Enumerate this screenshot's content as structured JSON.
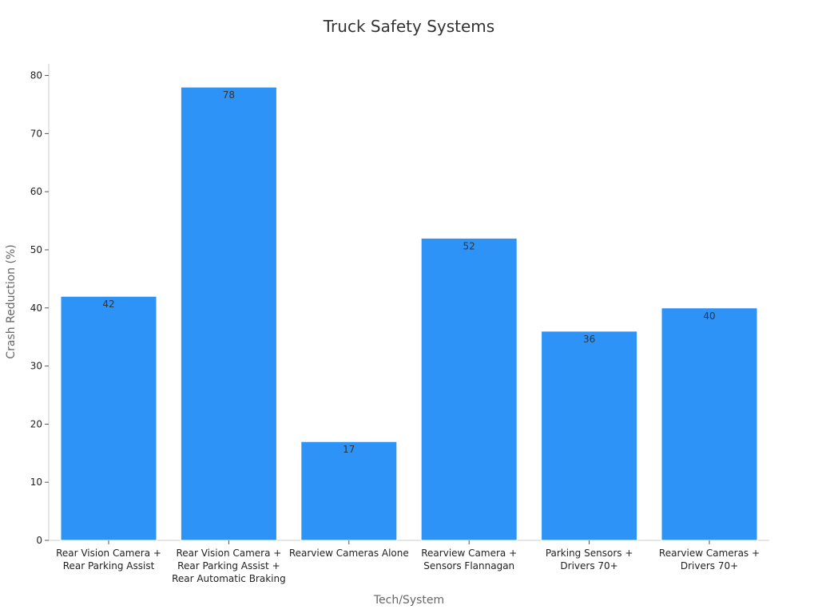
{
  "chart_data": {
    "type": "bar",
    "title": "Truck Safety Systems",
    "xlabel": "Tech/System",
    "ylabel": "Crash Reduction (%)",
    "categories": [
      [
        "Rear Vision Camera +",
        "Rear Parking Assist"
      ],
      [
        "Rear Vision Camera +",
        "Rear Parking Assist +",
        "Rear Automatic Braking"
      ],
      [
        "Rearview Cameras Alone"
      ],
      [
        "Rearview Camera +",
        "Sensors Flannagan"
      ],
      [
        "Parking Sensors +",
        "Drivers 70+"
      ],
      [
        "Rearview Cameras +",
        "Drivers 70+"
      ]
    ],
    "values": [
      42,
      78,
      17,
      52,
      36,
      40
    ],
    "ylim": [
      0,
      82
    ],
    "yticks": [
      0,
      10,
      20,
      30,
      40,
      50,
      60,
      70,
      80
    ],
    "grid": false,
    "legend": "none",
    "bar_color": "#2e93f7",
    "bar_edge_color": "#ffffff"
  }
}
